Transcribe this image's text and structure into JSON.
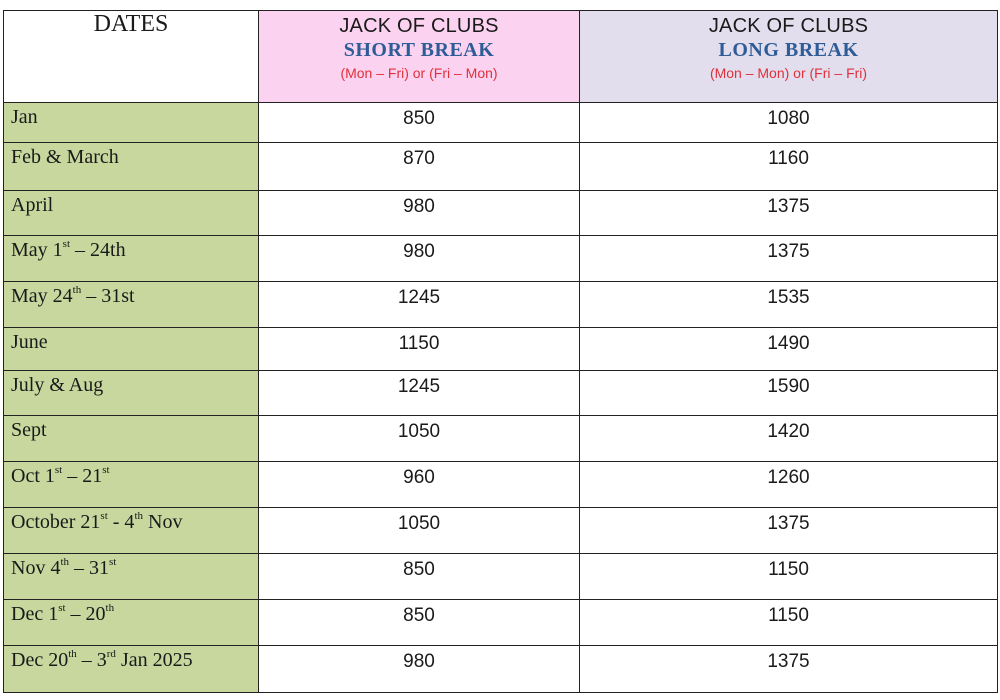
{
  "header": {
    "dates_label": "DATES",
    "short": {
      "line1": "JACK OF CLUBS",
      "line2": "SHORT BREAK",
      "line3": "(Mon – Fri) or (Fri – Mon)"
    },
    "long": {
      "line1": "JACK OF CLUBS",
      "line2": "LONG BREAK",
      "line3": "(Mon – Mon) or (Fri – Fri)"
    }
  },
  "colors": {
    "date_column": "#c7d79e",
    "short_header": "#fbd3f0",
    "long_header": "#e3deed",
    "break_title": "#2e5c97",
    "days_note": "#e0303b"
  },
  "rows": [
    {
      "date": [
        {
          "t": "Jan"
        }
      ],
      "short": "850",
      "long": "1080"
    },
    {
      "date": [
        {
          "t": "Feb & March"
        }
      ],
      "short": "870",
      "long": "1160"
    },
    {
      "date": [
        {
          "t": "April"
        }
      ],
      "short": "980",
      "long": "1375"
    },
    {
      "date": [
        {
          "t": "May 1"
        },
        {
          "s": "st"
        },
        {
          "t": " – 24th"
        }
      ],
      "short": "980",
      "long": "1375"
    },
    {
      "date": [
        {
          "t": "May 24"
        },
        {
          "s": "th"
        },
        {
          "t": " – 31st"
        }
      ],
      "short": "1245",
      "long": "1535"
    },
    {
      "date": [
        {
          "t": "June"
        }
      ],
      "short": "1150",
      "long": "1490"
    },
    {
      "date": [
        {
          "t": "July & Aug"
        }
      ],
      "short": "1245",
      "long": "1590"
    },
    {
      "date": [
        {
          "t": "Sept"
        }
      ],
      "short": "1050",
      "long": "1420"
    },
    {
      "date": [
        {
          "t": "Oct 1"
        },
        {
          "s": "st"
        },
        {
          "t": " – 21"
        },
        {
          "s": "st"
        }
      ],
      "short": "960",
      "long": "1260"
    },
    {
      "date": [
        {
          "t": "October 21"
        },
        {
          "s": "st"
        },
        {
          "t": " - 4"
        },
        {
          "s": "th"
        },
        {
          "t": " Nov"
        }
      ],
      "short": "1050",
      "long": "1375"
    },
    {
      "date": [
        {
          "t": "Nov 4"
        },
        {
          "s": "th"
        },
        {
          "t": " – 31"
        },
        {
          "s": "st"
        }
      ],
      "short": "850",
      "long": "1150"
    },
    {
      "date": [
        {
          "t": "Dec 1"
        },
        {
          "s": "st"
        },
        {
          "t": " – 20"
        },
        {
          "s": "th"
        }
      ],
      "short": "850",
      "long": "1150"
    },
    {
      "date": [
        {
          "t": "Dec 20"
        },
        {
          "s": "th"
        },
        {
          "t": " – 3"
        },
        {
          "s": "rd"
        },
        {
          "t": " Jan 2025"
        }
      ],
      "short": "980",
      "long": "1375"
    }
  ]
}
